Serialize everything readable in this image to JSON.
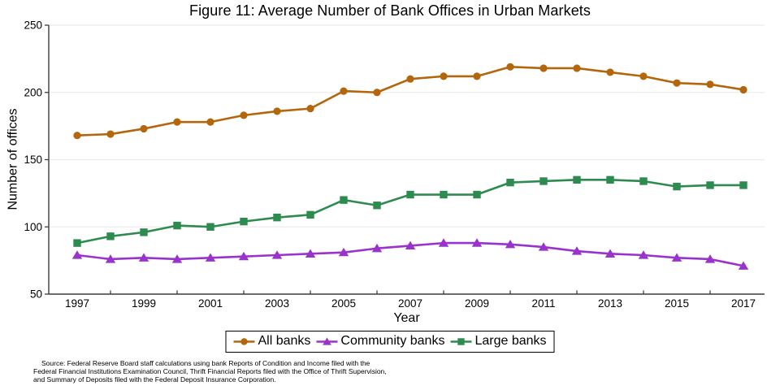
{
  "chart_data": {
    "type": "line",
    "title": "Figure 11: Average Number of Bank Offices in Urban Markets",
    "xlabel": "Year",
    "ylabel": "Number of offices",
    "x": [
      1997,
      1998,
      1999,
      2000,
      2001,
      2002,
      2003,
      2004,
      2005,
      2006,
      2007,
      2008,
      2009,
      2010,
      2011,
      2012,
      2013,
      2014,
      2015,
      2016,
      2017
    ],
    "series": [
      {
        "name": "All banks",
        "marker": "circle",
        "color": "#b3660b",
        "values": [
          168,
          169,
          173,
          178,
          178,
          183,
          186,
          188,
          201,
          200,
          210,
          212,
          212,
          219,
          218,
          218,
          215,
          212,
          207,
          206,
          202
        ]
      },
      {
        "name": "Community banks",
        "marker": "triangle",
        "color": "#9933cc",
        "values": [
          79,
          76,
          77,
          76,
          77,
          78,
          79,
          80,
          81,
          84,
          86,
          88,
          88,
          87,
          85,
          82,
          80,
          79,
          77,
          76,
          71
        ]
      },
      {
        "name": "Large banks",
        "marker": "square",
        "color": "#2e8b4f",
        "values": [
          88,
          93,
          96,
          101,
          100,
          104,
          107,
          109,
          120,
          116,
          124,
          124,
          124,
          133,
          134,
          135,
          135,
          134,
          130,
          131,
          131
        ]
      }
    ],
    "ylim": [
      50,
      250
    ],
    "yticks": [
      50,
      100,
      150,
      200,
      250
    ],
    "xticks_labeled": [
      1997,
      1999,
      2001,
      2003,
      2005,
      2007,
      2009,
      2011,
      2013,
      2015,
      2017
    ],
    "grid": "horizontal gridlines at 100,150,200,250",
    "legend_position": "bottom-center",
    "colors": {
      "gridline": "#ebebeb",
      "axis": "#3d3d3d",
      "tick_label": "#000000"
    }
  },
  "source_note": {
    "lines": [
      "Source: Federal Reserve Board staff calculations using bank Reports of Condition and Income filed with the",
      "Federal Financial Institutions Examination Council, Thrift Financial Reports filed with the Office of Thrift Supervision,",
      "and Summary of Deposits filed with the Federal Deposit Insurance Corporation."
    ]
  }
}
